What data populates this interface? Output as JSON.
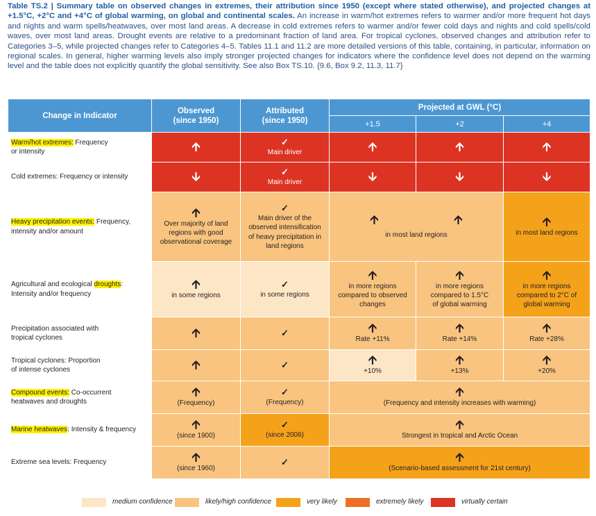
{
  "caption": {
    "title": "Table TS.2 | Summary table on observed changes in extremes, their attribution since 1950 (except where stated otherwise), and projected changes at +1.5°C, +2°C and +4°C of global warming, on global and continental scales.",
    "body": "An increase in warm/hot extremes refers to warmer and/or more frequent hot days and nights and warm spells/heatwaves, over most land areas. A decrease in cold extremes refers to warmer and/or fewer cold days and nights and cold spells/cold waves, over most land areas. Drought events are relative to a predominant fraction of land area. For tropical cyclones, observed changes and attribution refer to Categories 3–5, while projected changes refer to Categories 4–5. Tables 11.1 and 11.2 are more detailed versions of this table, containing, in particular, information on regional scales. In general, higher warming levels also imply stronger projected changes for indicators where the confidence level does not depend on the warming level and the table does not explicitly quantify the global sensitivity. See also Box TS.10. {9.6, Box 9.2, 11.3, 11.7}"
  },
  "header": {
    "indicator": "Change in Indicator",
    "observed_1": "Observed",
    "observed_2": "(since 1950)",
    "attributed_1": "Attributed",
    "attributed_2": "(since 1950)",
    "projected": "Projected at GWL (°C)",
    "gwl15": "+1.5",
    "gwl2": "+2",
    "gwl4": "+4"
  },
  "symbols": {
    "up": "🡩",
    "down": "🡫",
    "check": "✓"
  },
  "rows": {
    "warm": {
      "label_hl": "Warm/hot extremes:",
      "label_1": " Frequency",
      "label_2": "or intensity",
      "attr_text": "Main driver"
    },
    "cold": {
      "label": "Cold extremes: Frequency or intensity",
      "attr_text": "Main driver"
    },
    "heavy": {
      "label_hl": "Heavy precipitation events:",
      "label_1": " Frequency,",
      "label_2": "intensity and/or amount",
      "obs_1": "Over majority of land",
      "obs_2": "regions with good",
      "obs_3": "observational coverage",
      "attr_1": "Main driver of the",
      "attr_2": "observed intensification",
      "attr_3": "of heavy precipitation in",
      "attr_4": "land regions",
      "proj_12": "in most land regions",
      "proj_4": "in most land regions"
    },
    "drought": {
      "label_1": "Agricultural and ecological ",
      "label_hl": "droughts",
      "label_2": ":",
      "label_3": "Intensity and/or frequency",
      "obs": "in some regions",
      "attr": "in some regions",
      "p15_1": "in more regions",
      "p15_2": "compared to observed",
      "p15_3": "changes",
      "p2_1": "in more regions",
      "p2_2": "compared to 1.5°C",
      "p2_3": "of global warming",
      "p4_1": "in more regions",
      "p4_2": "compared to 2°C of",
      "p4_3": "global warming"
    },
    "tcprecip": {
      "label_1": "Precipitation associated with",
      "label_2": "tropical cyclones",
      "p15": "Rate +11%",
      "p2": "Rate +14%",
      "p4": "Rate +28%"
    },
    "tcprop": {
      "label_1": "Tropical cyclones: Proportion",
      "label_2": "of intense cyclones",
      "p15": "+10%",
      "p2": "+13%",
      "p4": "+20%"
    },
    "compound": {
      "label_hl": "Compound events:",
      "label_1": " Co-occurrent",
      "label_2": "heatwaves and droughts",
      "obs": "(Frequency)",
      "attr": "(Frequency)",
      "proj": "(Frequency and intensity increases with warming)"
    },
    "marine": {
      "label_hl": "Marine heatwaves",
      "label_1": ": Intensity & frequency",
      "obs": "(since 1900)",
      "attr": "(since 2006)",
      "proj": "Strongest in tropical and Arctic Ocean"
    },
    "sealevel": {
      "label": "Extreme sea levels: Frequency",
      "obs": "(since 1960)",
      "proj": "(Scenario-based assessment for 21st century)"
    }
  },
  "legend": [
    {
      "label": "medium confidence",
      "color": "#fde6c6"
    },
    {
      "label": "likely/high confidence",
      "color": "#f9c47f"
    },
    {
      "label": "very likely",
      "color": "#f5a21b"
    },
    {
      "label": "extremely likely",
      "color": "#ed7024"
    },
    {
      "label": "virtually certain",
      "color": "#dc3323"
    }
  ]
}
